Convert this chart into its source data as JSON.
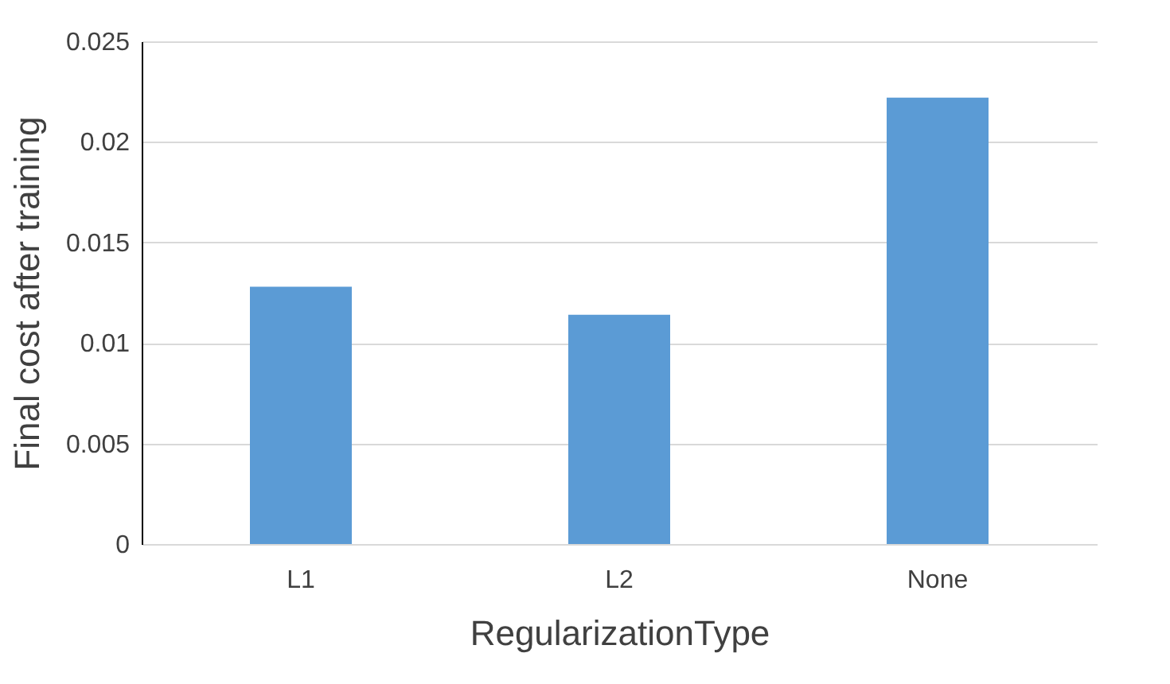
{
  "chart_data": {
    "type": "bar",
    "xlabel": "RegularizationType",
    "ylabel": "Final cost after training",
    "categories": [
      "L1",
      "L2",
      "None"
    ],
    "values": [
      0.0128,
      0.0114,
      0.0222
    ],
    "color": "#5b9bd5",
    "ylim": [
      0,
      0.025
    ],
    "yticks": [
      0,
      0.005,
      0.01,
      0.015,
      0.02,
      0.025
    ],
    "grid": "y"
  }
}
